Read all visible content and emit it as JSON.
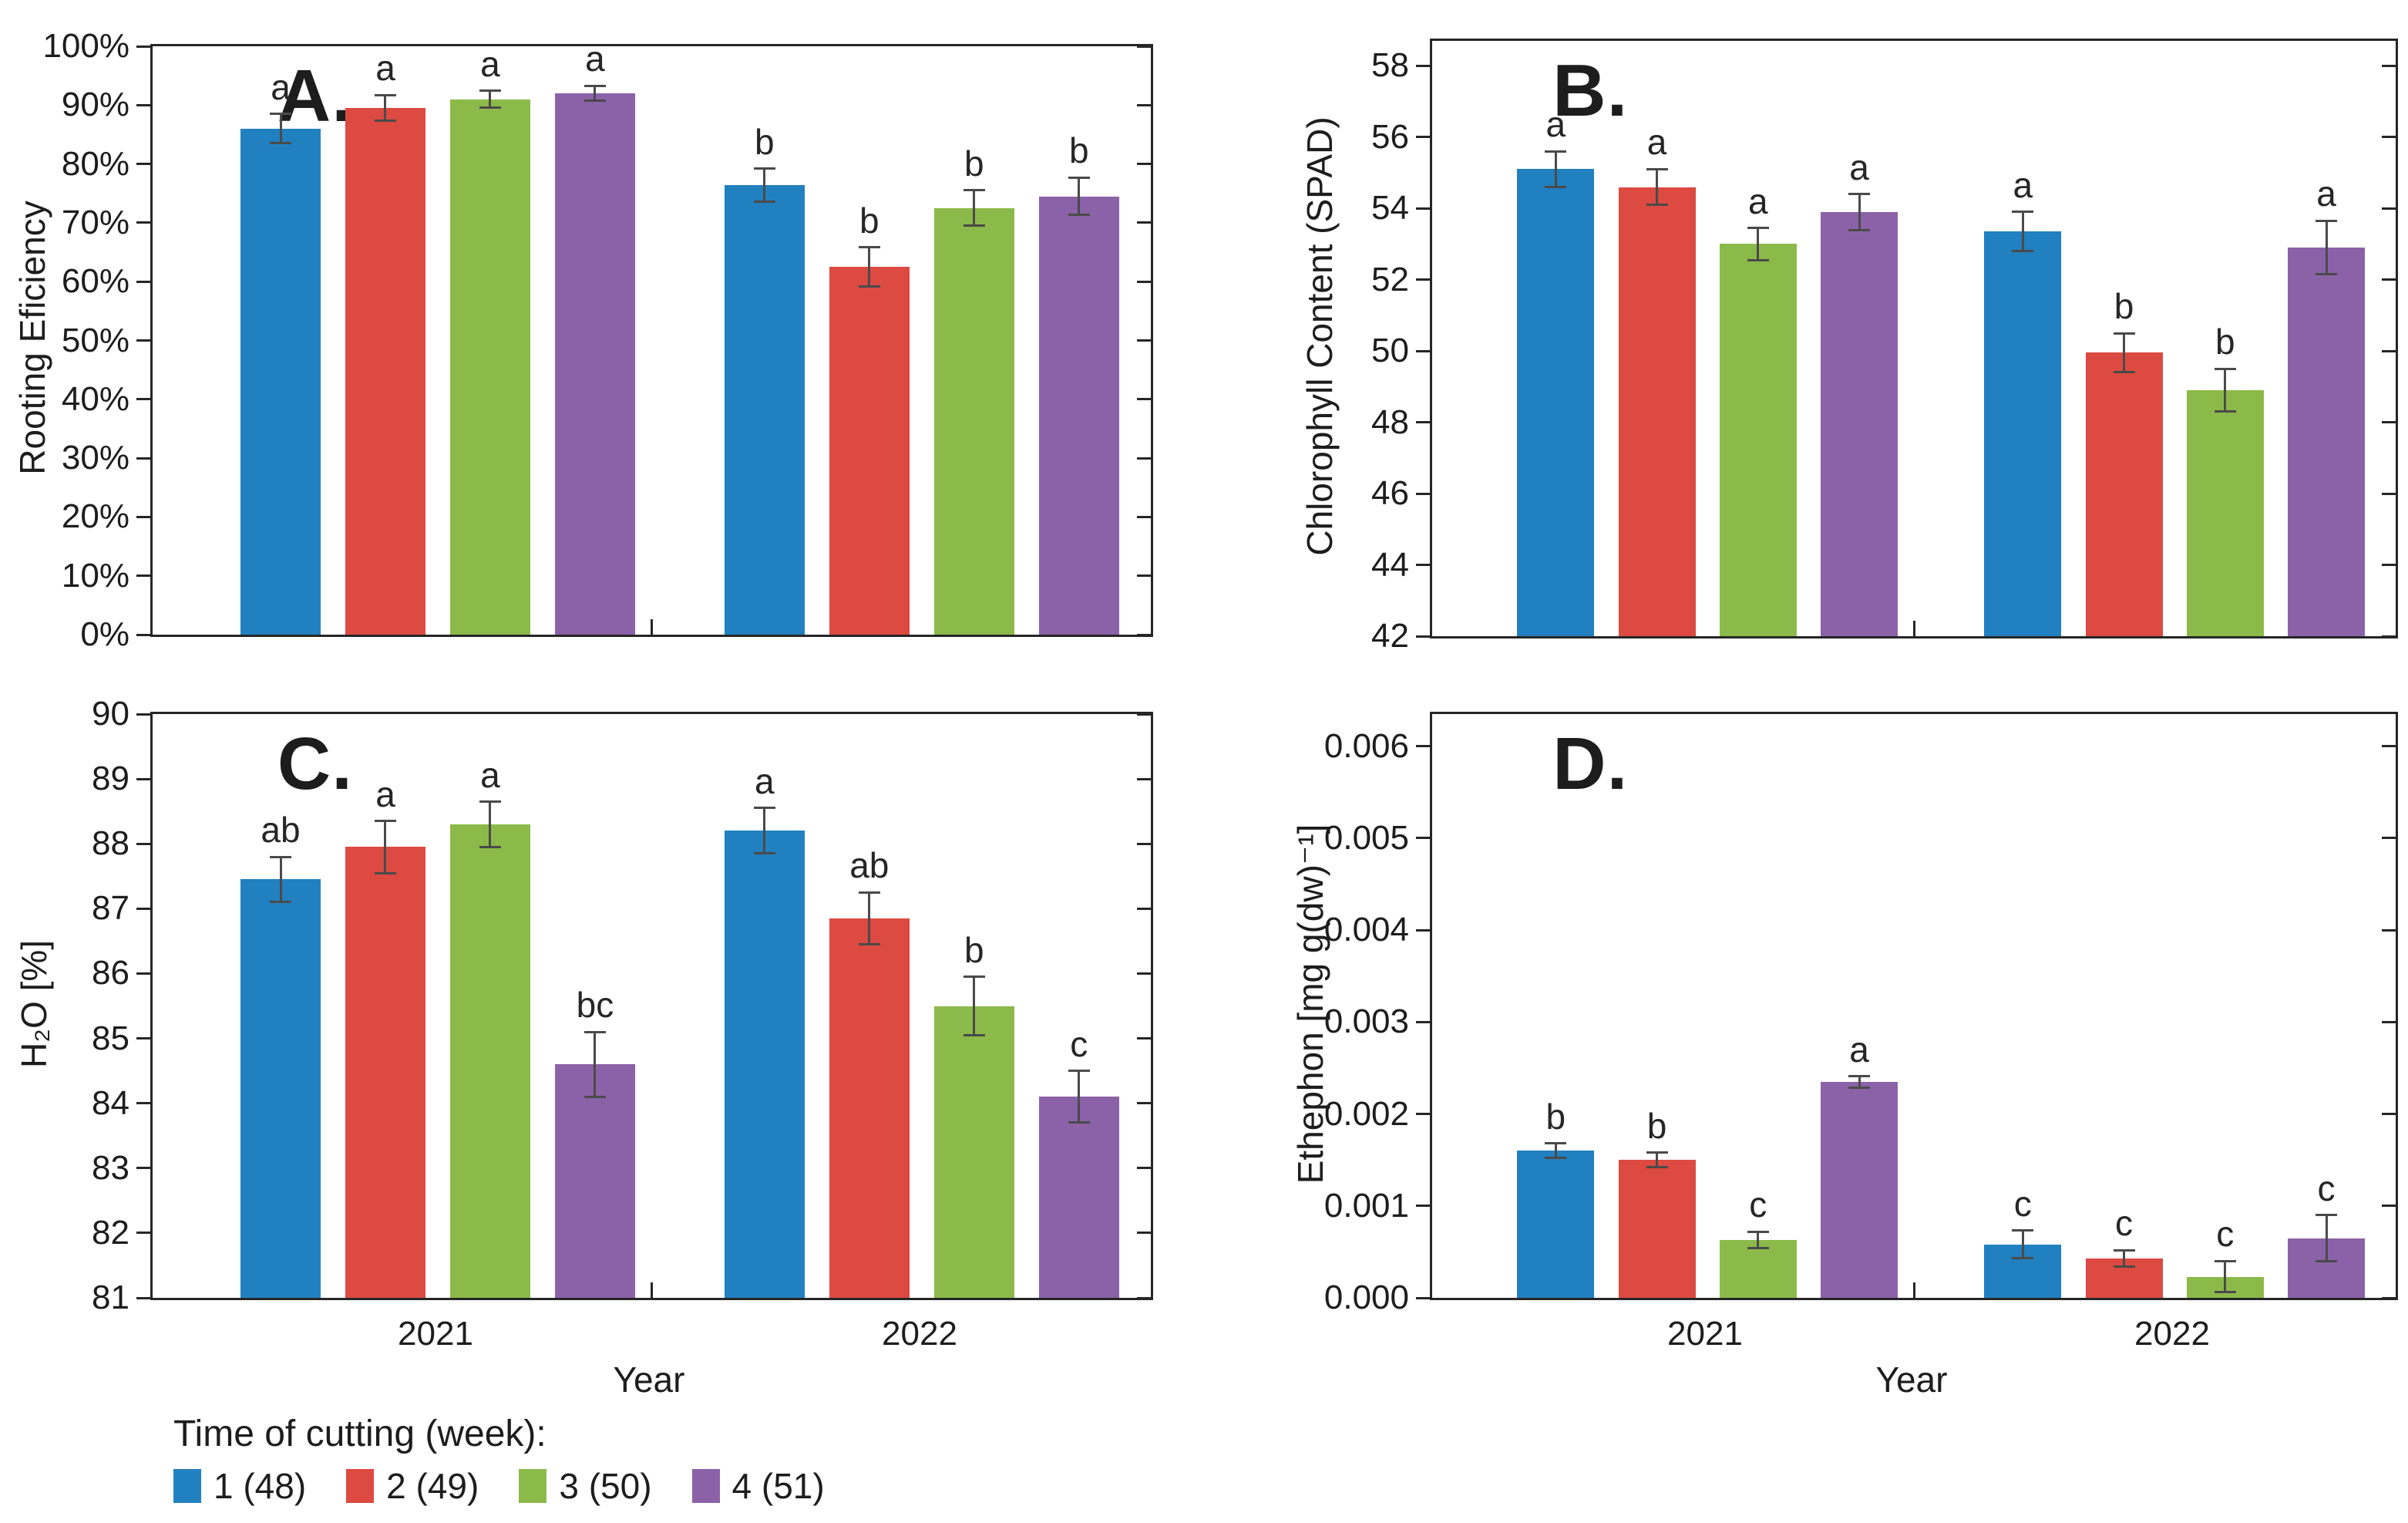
{
  "palette": {
    "week1": "#2180C0",
    "week2": "#DC4A41",
    "week3": "#8CBA4A",
    "week4": "#8B62A8",
    "error_bar": "#4a4a4a",
    "axis": "#262626"
  },
  "xlabel": "Year",
  "legend": {
    "title": "Time of cutting (week):",
    "items": [
      {
        "label": "1 (48)",
        "color": "#2180C0"
      },
      {
        "label": "2 (49)",
        "color": "#DC4A41"
      },
      {
        "label": "3 (50)",
        "color": "#8CBA4A"
      },
      {
        "label": "4 (51)",
        "color": "#8B62A8"
      }
    ]
  },
  "chart_data": [
    {
      "id": "A",
      "type": "bar",
      "panel_label": "A.",
      "ylabel": "Rooting Eficiency",
      "ylim": [
        0,
        100
      ],
      "yticks": [
        {
          "v": 0,
          "label": "0%"
        },
        {
          "v": 10,
          "label": "10%"
        },
        {
          "v": 20,
          "label": "20%"
        },
        {
          "v": 30,
          "label": "30%"
        },
        {
          "v": 40,
          "label": "40%"
        },
        {
          "v": 50,
          "label": "50%"
        },
        {
          "v": 60,
          "label": "60%"
        },
        {
          "v": 70,
          "label": "70%"
        },
        {
          "v": 80,
          "label": "80%"
        },
        {
          "v": 90,
          "label": "90%"
        },
        {
          "v": 100,
          "label": "100%"
        }
      ],
      "categories": [
        "2021",
        "2022"
      ],
      "series": [
        {
          "name": "1 (48)",
          "color": "#2180C0",
          "values": [
            86,
            76.4
          ],
          "errors": [
            2.5,
            2.8
          ],
          "letters": [
            "a",
            "b"
          ]
        },
        {
          "name": "2 (49)",
          "color": "#DC4A41",
          "values": [
            89.5,
            62.5
          ],
          "errors": [
            2.2,
            3.3
          ],
          "letters": [
            "a",
            "b"
          ]
        },
        {
          "name": "3 (50)",
          "color": "#8CBA4A",
          "values": [
            91,
            72.5
          ],
          "errors": [
            1.4,
            3.0
          ],
          "letters": [
            "a",
            "b"
          ]
        },
        {
          "name": "4 (51)",
          "color": "#8B62A8",
          "values": [
            92,
            74.5
          ],
          "errors": [
            1.3,
            3.2
          ],
          "letters": [
            "a",
            "b"
          ]
        }
      ]
    },
    {
      "id": "B",
      "type": "bar",
      "panel_label": "B.",
      "ylabel": "Chlorophyll Content (SPAD)",
      "ylim": [
        42,
        58.7
      ],
      "yticks": [
        {
          "v": 42,
          "label": "42"
        },
        {
          "v": 44,
          "label": "44"
        },
        {
          "v": 46,
          "label": "46"
        },
        {
          "v": 48,
          "label": "48"
        },
        {
          "v": 50,
          "label": "50"
        },
        {
          "v": 52,
          "label": "52"
        },
        {
          "v": 54,
          "label": "54"
        },
        {
          "v": 56,
          "label": "56"
        },
        {
          "v": 58,
          "label": "58"
        }
      ],
      "categories": [
        "2021",
        "2022"
      ],
      "series": [
        {
          "name": "1 (48)",
          "color": "#2180C0",
          "values": [
            55.1,
            53.35
          ],
          "errors": [
            0.5,
            0.55
          ],
          "letters": [
            "a",
            "a"
          ]
        },
        {
          "name": "2 (49)",
          "color": "#DC4A41",
          "values": [
            54.6,
            49.95
          ],
          "errors": [
            0.5,
            0.55
          ],
          "letters": [
            "a",
            "b"
          ]
        },
        {
          "name": "3 (50)",
          "color": "#8CBA4A",
          "values": [
            53.0,
            48.9
          ],
          "errors": [
            0.45,
            0.6
          ],
          "letters": [
            "a",
            "b"
          ]
        },
        {
          "name": "4 (51)",
          "color": "#8B62A8",
          "values": [
            53.9,
            52.9
          ],
          "errors": [
            0.5,
            0.75
          ],
          "letters": [
            "a",
            "a"
          ]
        }
      ]
    },
    {
      "id": "C",
      "type": "bar",
      "panel_label": "C.",
      "ylabel": "H₂O [%]",
      "ylim": [
        81,
        90
      ],
      "yticks": [
        {
          "v": 81,
          "label": "81"
        },
        {
          "v": 82,
          "label": "82"
        },
        {
          "v": 83,
          "label": "83"
        },
        {
          "v": 84,
          "label": "84"
        },
        {
          "v": 85,
          "label": "85"
        },
        {
          "v": 86,
          "label": "86"
        },
        {
          "v": 87,
          "label": "87"
        },
        {
          "v": 88,
          "label": "88"
        },
        {
          "v": 89,
          "label": "89"
        },
        {
          "v": 90,
          "label": "90"
        }
      ],
      "categories": [
        "2021",
        "2022"
      ],
      "series": [
        {
          "name": "1 (48)",
          "color": "#2180C0",
          "values": [
            87.45,
            88.2
          ],
          "errors": [
            0.35,
            0.35
          ],
          "letters": [
            "ab",
            "a"
          ]
        },
        {
          "name": "2 (49)",
          "color": "#DC4A41",
          "values": [
            87.95,
            86.85
          ],
          "errors": [
            0.4,
            0.4
          ],
          "letters": [
            "a",
            "ab"
          ]
        },
        {
          "name": "3 (50)",
          "color": "#8CBA4A",
          "values": [
            88.3,
            85.5
          ],
          "errors": [
            0.35,
            0.45
          ],
          "letters": [
            "a",
            "b"
          ]
        },
        {
          "name": "4 (51)",
          "color": "#8B62A8",
          "values": [
            84.6,
            84.1
          ],
          "errors": [
            0.5,
            0.4
          ],
          "letters": [
            "bc",
            "c"
          ]
        }
      ]
    },
    {
      "id": "D",
      "type": "bar",
      "panel_label": "D.",
      "ylabel": "Ethephon [mg g(dw)⁻¹]",
      "ylim": [
        0,
        0.00635
      ],
      "yticks": [
        {
          "v": 0,
          "label": "0.000"
        },
        {
          "v": 0.001,
          "label": "0.001"
        },
        {
          "v": 0.002,
          "label": "0.002"
        },
        {
          "v": 0.003,
          "label": "0.003"
        },
        {
          "v": 0.004,
          "label": "0.004"
        },
        {
          "v": 0.005,
          "label": "0.005"
        },
        {
          "v": 0.006,
          "label": "0.006"
        }
      ],
      "categories": [
        "2021",
        "2022"
      ],
      "series": [
        {
          "name": "1 (48)",
          "color": "#2180C0",
          "values": [
            0.0016,
            0.00058
          ],
          "errors": [
            8e-05,
            0.00015
          ],
          "letters": [
            "b",
            "c"
          ]
        },
        {
          "name": "2 (49)",
          "color": "#DC4A41",
          "values": [
            0.0015,
            0.00043
          ],
          "errors": [
            8e-05,
            9e-05
          ],
          "letters": [
            "b",
            "c"
          ]
        },
        {
          "name": "3 (50)",
          "color": "#8CBA4A",
          "values": [
            0.00063,
            0.00023
          ],
          "errors": [
            9e-05,
            0.00017
          ],
          "letters": [
            "c",
            "c"
          ]
        },
        {
          "name": "4 (51)",
          "color": "#8B62A8",
          "values": [
            0.00235,
            0.00065
          ],
          "errors": [
            6e-05,
            0.00025
          ],
          "letters": [
            "a",
            "c"
          ]
        }
      ]
    }
  ]
}
